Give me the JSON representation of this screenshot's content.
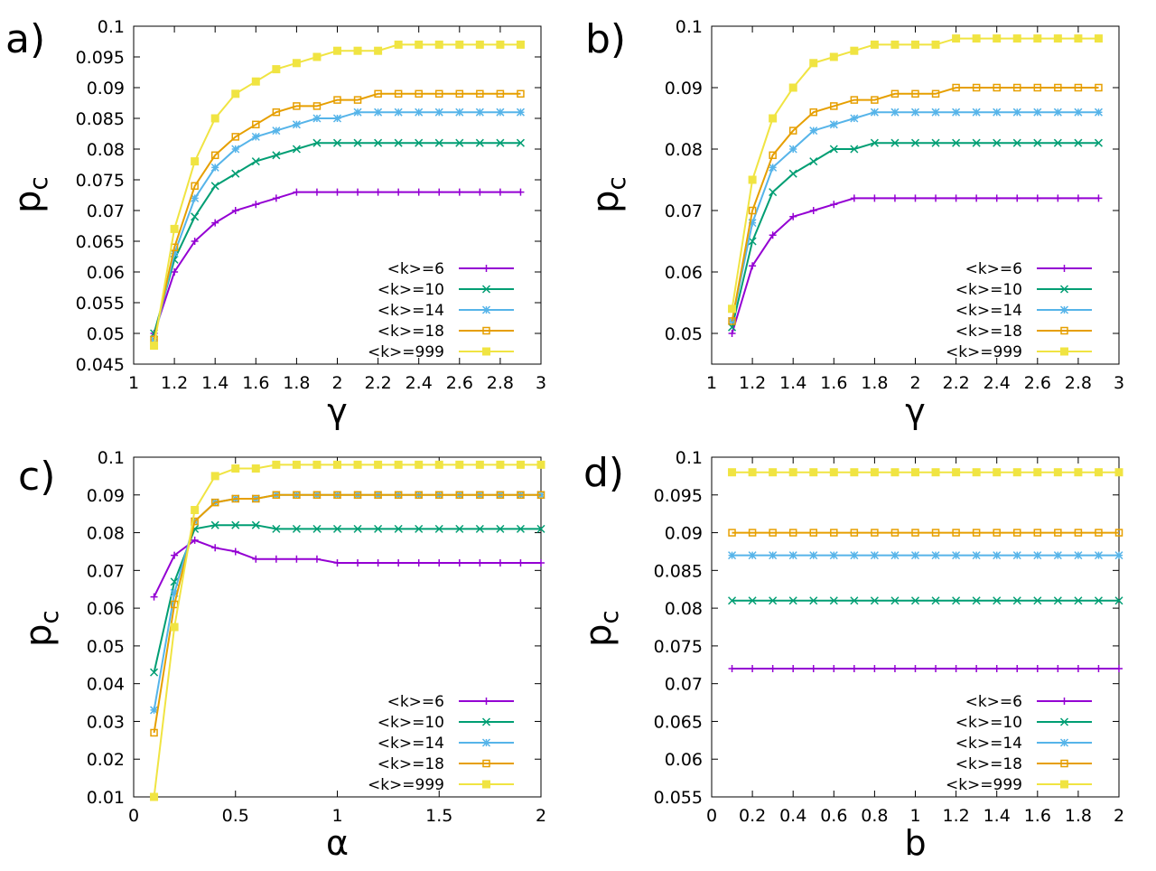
{
  "chart_data": [
    {
      "panel": "a",
      "type": "line",
      "panel_label": "a)",
      "xlabel": "γ",
      "ylabel": "p",
      "ylabel_sub": "c",
      "xlim": [
        1,
        3
      ],
      "ylim": [
        0.045,
        0.1
      ],
      "xticks": [
        1,
        1.2,
        1.4,
        1.6,
        1.8,
        2,
        2.2,
        2.4,
        2.6,
        2.8,
        3
      ],
      "xtick_labels": [
        "1",
        "1.2",
        "1.4",
        "1.6",
        "1.8",
        "2",
        "2.2",
        "2.4",
        "2.6",
        "2.8",
        "3"
      ],
      "yticks": [
        0.045,
        0.05,
        0.055,
        0.06,
        0.065,
        0.07,
        0.075,
        0.08,
        0.085,
        0.09,
        0.095,
        0.1
      ],
      "ytick_labels": [
        "0.045",
        "0.05",
        "0.055",
        "0.06",
        "0.065",
        "0.07",
        "0.075",
        "0.08",
        "0.085",
        "0.09",
        "0.095",
        "0.1"
      ],
      "x": [
        1.1,
        1.2,
        1.3,
        1.4,
        1.5,
        1.6,
        1.7,
        1.8,
        1.9,
        2.0,
        2.1,
        2.2,
        2.3,
        2.4,
        2.5,
        2.6,
        2.7,
        2.8,
        2.9
      ],
      "series": [
        {
          "name": "<k>=6",
          "values": [
            0.05,
            0.06,
            0.065,
            0.068,
            0.07,
            0.071,
            0.072,
            0.073,
            0.073,
            0.073,
            0.073,
            0.073,
            0.073,
            0.073,
            0.073,
            0.073,
            0.073,
            0.073,
            0.073
          ]
        },
        {
          "name": "<k>=10",
          "values": [
            0.05,
            0.062,
            0.069,
            0.074,
            0.076,
            0.078,
            0.079,
            0.08,
            0.081,
            0.081,
            0.081,
            0.081,
            0.081,
            0.081,
            0.081,
            0.081,
            0.081,
            0.081,
            0.081
          ]
        },
        {
          "name": "<k>=14",
          "values": [
            0.049,
            0.063,
            0.072,
            0.077,
            0.08,
            0.082,
            0.083,
            0.084,
            0.085,
            0.085,
            0.086,
            0.086,
            0.086,
            0.086,
            0.086,
            0.086,
            0.086,
            0.086,
            0.086
          ]
        },
        {
          "name": "<k>=18",
          "values": [
            0.049,
            0.064,
            0.074,
            0.079,
            0.082,
            0.084,
            0.086,
            0.087,
            0.087,
            0.088,
            0.088,
            0.089,
            0.089,
            0.089,
            0.089,
            0.089,
            0.089,
            0.089,
            0.089
          ]
        },
        {
          "name": "<k>=999",
          "values": [
            0.048,
            0.067,
            0.078,
            0.085,
            0.089,
            0.091,
            0.093,
            0.094,
            0.095,
            0.096,
            0.096,
            0.096,
            0.097,
            0.097,
            0.097,
            0.097,
            0.097,
            0.097,
            0.097
          ]
        }
      ],
      "legend_position": "bottom-right"
    },
    {
      "panel": "b",
      "type": "line",
      "panel_label": "b)",
      "xlabel": "γ",
      "ylabel": "p",
      "ylabel_sub": "c",
      "xlim": [
        1,
        3
      ],
      "ylim": [
        0.045,
        0.1
      ],
      "xticks": [
        1,
        1.2,
        1.4,
        1.6,
        1.8,
        2,
        2.2,
        2.4,
        2.6,
        2.8,
        3
      ],
      "xtick_labels": [
        "1",
        "1.2",
        "1.4",
        "1.6",
        "1.8",
        "2",
        "2.2",
        "2.4",
        "2.6",
        "2.8",
        "3"
      ],
      "yticks": [
        0.05,
        0.06,
        0.07,
        0.08,
        0.09,
        0.1
      ],
      "ytick_labels": [
        "0.05",
        "0.06",
        "0.07",
        "0.08",
        "0.09",
        "0.1"
      ],
      "x": [
        1.1,
        1.2,
        1.3,
        1.4,
        1.5,
        1.6,
        1.7,
        1.8,
        1.9,
        2.0,
        2.1,
        2.2,
        2.3,
        2.4,
        2.5,
        2.6,
        2.7,
        2.8,
        2.9
      ],
      "series": [
        {
          "name": "<k>=6",
          "values": [
            0.05,
            0.061,
            0.066,
            0.069,
            0.07,
            0.071,
            0.072,
            0.072,
            0.072,
            0.072,
            0.072,
            0.072,
            0.072,
            0.072,
            0.072,
            0.072,
            0.072,
            0.072,
            0.072
          ]
        },
        {
          "name": "<k>=10",
          "values": [
            0.051,
            0.065,
            0.073,
            0.076,
            0.078,
            0.08,
            0.08,
            0.081,
            0.081,
            0.081,
            0.081,
            0.081,
            0.081,
            0.081,
            0.081,
            0.081,
            0.081,
            0.081,
            0.081
          ]
        },
        {
          "name": "<k>=14",
          "values": [
            0.052,
            0.068,
            0.077,
            0.08,
            0.083,
            0.084,
            0.085,
            0.086,
            0.086,
            0.086,
            0.086,
            0.086,
            0.086,
            0.086,
            0.086,
            0.086,
            0.086,
            0.086,
            0.086
          ]
        },
        {
          "name": "<k>=18",
          "values": [
            0.052,
            0.07,
            0.079,
            0.083,
            0.086,
            0.087,
            0.088,
            0.088,
            0.089,
            0.089,
            0.089,
            0.09,
            0.09,
            0.09,
            0.09,
            0.09,
            0.09,
            0.09,
            0.09
          ]
        },
        {
          "name": "<k>=999",
          "values": [
            0.054,
            0.075,
            0.085,
            0.09,
            0.094,
            0.095,
            0.096,
            0.097,
            0.097,
            0.097,
            0.097,
            0.098,
            0.098,
            0.098,
            0.098,
            0.098,
            0.098,
            0.098,
            0.098
          ]
        }
      ],
      "legend_position": "bottom-right"
    },
    {
      "panel": "c",
      "type": "line",
      "panel_label": "c)",
      "xlabel": "α",
      "ylabel": "p",
      "ylabel_sub": "c",
      "xlim": [
        0,
        2
      ],
      "ylim": [
        0.01,
        0.1
      ],
      "xticks": [
        0,
        0.5,
        1,
        1.5,
        2
      ],
      "xtick_labels": [
        "0",
        "0.5",
        "1",
        "1.5",
        "2"
      ],
      "yticks": [
        0.01,
        0.02,
        0.03,
        0.04,
        0.05,
        0.06,
        0.07,
        0.08,
        0.09,
        0.1
      ],
      "ytick_labels": [
        "0.01",
        "0.02",
        "0.03",
        "0.04",
        "0.05",
        "0.06",
        "0.07",
        "0.08",
        "0.09",
        "0.1"
      ],
      "x": [
        0.1,
        0.2,
        0.3,
        0.4,
        0.5,
        0.6,
        0.7,
        0.8,
        0.9,
        1.0,
        1.1,
        1.2,
        1.3,
        1.4,
        1.5,
        1.6,
        1.7,
        1.8,
        1.9,
        2.0
      ],
      "series": [
        {
          "name": "<k>=6",
          "values": [
            0.063,
            0.074,
            0.078,
            0.076,
            0.075,
            0.073,
            0.073,
            0.073,
            0.073,
            0.072,
            0.072,
            0.072,
            0.072,
            0.072,
            0.072,
            0.072,
            0.072,
            0.072,
            0.072,
            0.072
          ]
        },
        {
          "name": "<k>=10",
          "values": [
            0.043,
            0.067,
            0.081,
            0.082,
            0.082,
            0.082,
            0.081,
            0.081,
            0.081,
            0.081,
            0.081,
            0.081,
            0.081,
            0.081,
            0.081,
            0.081,
            0.081,
            0.081,
            0.081,
            0.081
          ]
        },
        {
          "name": "<k>=14",
          "values": [
            0.033,
            0.064,
            0.083,
            0.088,
            0.089,
            0.089,
            0.09,
            0.09,
            0.09,
            0.09,
            0.09,
            0.09,
            0.09,
            0.09,
            0.09,
            0.09,
            0.09,
            0.09,
            0.09,
            0.09
          ]
        },
        {
          "name": "<k>=18",
          "values": [
            0.027,
            0.061,
            0.083,
            0.088,
            0.089,
            0.089,
            0.09,
            0.09,
            0.09,
            0.09,
            0.09,
            0.09,
            0.09,
            0.09,
            0.09,
            0.09,
            0.09,
            0.09,
            0.09,
            0.09
          ]
        },
        {
          "name": "<k>=999",
          "values": [
            0.01,
            0.055,
            0.086,
            0.095,
            0.097,
            0.097,
            0.098,
            0.098,
            0.098,
            0.098,
            0.098,
            0.098,
            0.098,
            0.098,
            0.098,
            0.098,
            0.098,
            0.098,
            0.098,
            0.098
          ]
        }
      ],
      "legend_position": "bottom-right"
    },
    {
      "panel": "d",
      "type": "line",
      "panel_label": "d)",
      "xlabel": "b",
      "ylabel": "p",
      "ylabel_sub": "c",
      "xlim": [
        0,
        2
      ],
      "ylim": [
        0.055,
        0.1
      ],
      "xticks": [
        0,
        0.2,
        0.4,
        0.6,
        0.8,
        1,
        1.2,
        1.4,
        1.6,
        1.8,
        2
      ],
      "xtick_labels": [
        "0",
        "0.2",
        "0.4",
        "0.6",
        "0.8",
        "1",
        "1.2",
        "1.4",
        "1.6",
        "1.8",
        "2"
      ],
      "yticks": [
        0.055,
        0.06,
        0.065,
        0.07,
        0.075,
        0.08,
        0.085,
        0.09,
        0.095,
        0.1
      ],
      "ytick_labels": [
        "0.055",
        "0.06",
        "0.065",
        "0.07",
        "0.075",
        "0.08",
        "0.085",
        "0.09",
        "0.095",
        "0.1"
      ],
      "x": [
        0.1,
        0.2,
        0.3,
        0.4,
        0.5,
        0.6,
        0.7,
        0.8,
        0.9,
        1.0,
        1.1,
        1.2,
        1.3,
        1.4,
        1.5,
        1.6,
        1.7,
        1.8,
        1.9,
        2.0
      ],
      "series": [
        {
          "name": "<k>=6",
          "values": [
            0.072,
            0.072,
            0.072,
            0.072,
            0.072,
            0.072,
            0.072,
            0.072,
            0.072,
            0.072,
            0.072,
            0.072,
            0.072,
            0.072,
            0.072,
            0.072,
            0.072,
            0.072,
            0.072,
            0.072
          ]
        },
        {
          "name": "<k>=10",
          "values": [
            0.081,
            0.081,
            0.081,
            0.081,
            0.081,
            0.081,
            0.081,
            0.081,
            0.081,
            0.081,
            0.081,
            0.081,
            0.081,
            0.081,
            0.081,
            0.081,
            0.081,
            0.081,
            0.081,
            0.081
          ]
        },
        {
          "name": "<k>=14",
          "values": [
            0.087,
            0.087,
            0.087,
            0.087,
            0.087,
            0.087,
            0.087,
            0.087,
            0.087,
            0.087,
            0.087,
            0.087,
            0.087,
            0.087,
            0.087,
            0.087,
            0.087,
            0.087,
            0.087,
            0.087
          ]
        },
        {
          "name": "<k>=18",
          "values": [
            0.09,
            0.09,
            0.09,
            0.09,
            0.09,
            0.09,
            0.09,
            0.09,
            0.09,
            0.09,
            0.09,
            0.09,
            0.09,
            0.09,
            0.09,
            0.09,
            0.09,
            0.09,
            0.09,
            0.09
          ]
        },
        {
          "name": "<k>=999",
          "values": [
            0.098,
            0.098,
            0.098,
            0.098,
            0.098,
            0.098,
            0.098,
            0.098,
            0.098,
            0.098,
            0.098,
            0.098,
            0.098,
            0.098,
            0.098,
            0.098,
            0.098,
            0.098,
            0.098,
            0.098
          ]
        }
      ],
      "legend_position": "bottom-right"
    }
  ],
  "series_styles": [
    {
      "color": "#9400d3",
      "marker": "plus"
    },
    {
      "color": "#009e73",
      "marker": "cross"
    },
    {
      "color": "#56b4e9",
      "marker": "star"
    },
    {
      "color": "#e69f00",
      "marker": "open-square"
    },
    {
      "color": "#f0e442",
      "marker": "filled-square"
    }
  ]
}
